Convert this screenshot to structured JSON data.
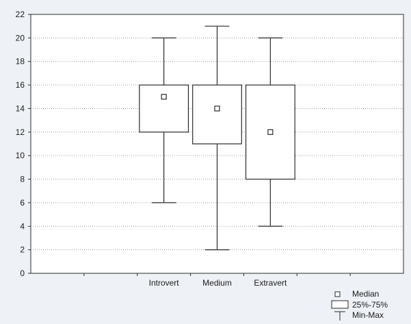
{
  "chart_data": {
    "type": "boxplot",
    "title": "",
    "xlabel": "",
    "ylabel": "",
    "ylim": [
      0,
      22
    ],
    "yticks": [
      0,
      2,
      4,
      6,
      8,
      10,
      12,
      14,
      16,
      18,
      20,
      22
    ],
    "xcategory_positions": [
      0,
      1,
      2,
      3,
      4,
      5,
      6
    ],
    "grid": true,
    "legend_position": "bottom-right",
    "categories": [
      "Introvert",
      "Medium",
      "Extravert"
    ],
    "category_index": [
      2,
      3,
      4
    ],
    "series": [
      {
        "name": "Introvert",
        "min": 6,
        "q1": 12,
        "median": 15,
        "q3": 16,
        "max": 20
      },
      {
        "name": "Medium",
        "min": 2,
        "q1": 11,
        "median": 14,
        "q3": 16,
        "max": 21
      },
      {
        "name": "Extravert",
        "min": 4,
        "q1": 8,
        "median": 12,
        "q3": 16,
        "max": 20
      }
    ],
    "legend": {
      "median": "Median",
      "box": "25%-75%",
      "whisker": "Min-Max"
    },
    "colors": {
      "background": "#eef1f6",
      "plot_background": "#ffffff",
      "line": "#2a2a2a",
      "grid": "#9a9a9a"
    }
  }
}
